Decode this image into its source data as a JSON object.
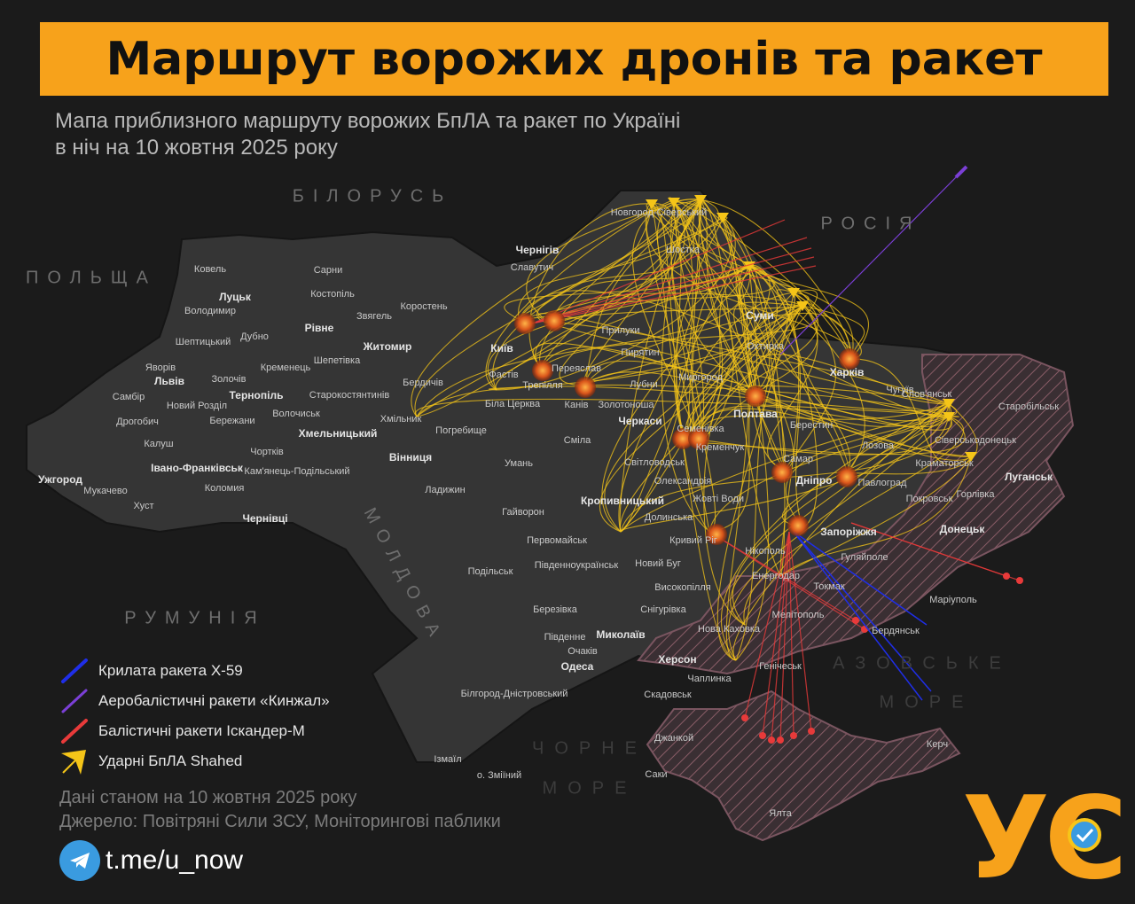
{
  "title": "Маршрут ворожих дронів та ракет",
  "subtitle": "Мапа приблизного маршруту ворожих БпЛА та ракет по Україні в ніч на 10 жовтня 2025 року",
  "countries": [
    "БІЛОРУСЬ",
    "РОСІЯ",
    "ПОЛЬЩА",
    "РУМУНІЯ",
    "МОЛДОВА"
  ],
  "seas": [
    "АЗОВСЬКЕ",
    "МОРЕ",
    "ЧОРНЕ",
    "МОРЕ"
  ],
  "cities": [
    {
      "name": "Ковель"
    },
    {
      "name": "Сарни"
    },
    {
      "name": "Луцьк",
      "center": true
    },
    {
      "name": "Костопіль"
    },
    {
      "name": "Володимир"
    },
    {
      "name": "Рівне",
      "center": true
    },
    {
      "name": "Звягель"
    },
    {
      "name": "Коростень"
    },
    {
      "name": "Дубно"
    },
    {
      "name": "Житомир",
      "center": true
    },
    {
      "name": "Шептицький"
    },
    {
      "name": "Шепетівка"
    },
    {
      "name": "Яворів"
    },
    {
      "name": "Кременець"
    },
    {
      "name": "Львів",
      "center": true
    },
    {
      "name": "Золочів"
    },
    {
      "name": "Бердичів"
    },
    {
      "name": "Тернопіль",
      "center": true
    },
    {
      "name": "Самбір"
    },
    {
      "name": "Старокостянтинів"
    },
    {
      "name": "Новий Розділ"
    },
    {
      "name": "Волочиськ"
    },
    {
      "name": "Хмільник"
    },
    {
      "name": "Дрогобич"
    },
    {
      "name": "Бережани"
    },
    {
      "name": "Хмельницький",
      "center": true
    },
    {
      "name": "Погребище"
    },
    {
      "name": "Калуш"
    },
    {
      "name": "Чортків"
    },
    {
      "name": "Вінниця",
      "center": true
    },
    {
      "name": "Івано-Франківськ",
      "center": true
    },
    {
      "name": "Кам'янець-Подільський"
    },
    {
      "name": "Ужгород",
      "center": true
    },
    {
      "name": "Мукачево"
    },
    {
      "name": "Коломия"
    },
    {
      "name": "Ладижин"
    },
    {
      "name": "Хуст"
    },
    {
      "name": "Чернівці",
      "center": true
    },
    {
      "name": "Новгород-Сіверський"
    },
    {
      "name": "Чернігів",
      "center": true
    },
    {
      "name": "Шостка"
    },
    {
      "name": "Славутич"
    },
    {
      "name": "Київ",
      "center": true
    },
    {
      "name": "Прилуки"
    },
    {
      "name": "Суми",
      "center": true
    },
    {
      "name": "Охтирка"
    },
    {
      "name": "Переяслав"
    },
    {
      "name": "Фастів"
    },
    {
      "name": "Пирятин"
    },
    {
      "name": "Трепілля"
    },
    {
      "name": "Лубни"
    },
    {
      "name": "Полтава",
      "center": true
    },
    {
      "name": "Харків",
      "center": true
    },
    {
      "name": "Чугуїв"
    },
    {
      "name": "Біла Церква"
    },
    {
      "name": "Канів"
    },
    {
      "name": "Золотоноша"
    },
    {
      "name": "Черкаси",
      "center": true
    },
    {
      "name": "Миргород"
    },
    {
      "name": "Семенівка"
    },
    {
      "name": "Лозова"
    },
    {
      "name": "Берестин"
    },
    {
      "name": "Кременчук"
    },
    {
      "name": "Сміла"
    },
    {
      "name": "Умань"
    },
    {
      "name": "Світловодськ"
    },
    {
      "name": "Краматорськ"
    },
    {
      "name": "Самар"
    },
    {
      "name": "Дніпро",
      "center": true
    },
    {
      "name": "Павлоград"
    },
    {
      "name": "Олександрія"
    },
    {
      "name": "Покровськ"
    },
    {
      "name": "Жовті Води"
    },
    {
      "name": "Кропивницький",
      "center": true
    },
    {
      "name": "Гайворон"
    },
    {
      "name": "Долинська"
    },
    {
      "name": "Запоріжжя",
      "center": true
    },
    {
      "name": "Кривий Ріг"
    },
    {
      "name": "Первомайськ"
    },
    {
      "name": "Нікополь"
    },
    {
      "name": "Гуляйполе"
    },
    {
      "name": "Подільськ"
    },
    {
      "name": "Південноукраїнськ"
    },
    {
      "name": "Новий Буг"
    },
    {
      "name": "Енергодар"
    },
    {
      "name": "Високопілля"
    },
    {
      "name": "Токмак"
    },
    {
      "name": "Березівка"
    },
    {
      "name": "Снігурівка"
    },
    {
      "name": "Мелітополь"
    },
    {
      "name": "Маріуполь"
    },
    {
      "name": "Бердянськ"
    },
    {
      "name": "Нова Каховка"
    },
    {
      "name": "Південне"
    },
    {
      "name": "Миколаїв",
      "center": true
    },
    {
      "name": "Очаків"
    },
    {
      "name": "Одеса",
      "center": true
    },
    {
      "name": "Херсон",
      "center": true
    },
    {
      "name": "Чаплинка"
    },
    {
      "name": "Скадовськ"
    },
    {
      "name": "Білгород-Дністровський"
    },
    {
      "name": "Ізмаїл"
    },
    {
      "name": "о. Зміїний"
    },
    {
      "name": "Джанкой"
    },
    {
      "name": "Керч"
    },
    {
      "name": "Саки"
    },
    {
      "name": "Ялта"
    },
    {
      "name": "Донецьк",
      "center": true
    },
    {
      "name": "Луганськ",
      "center": true
    },
    {
      "name": "Горлівка"
    },
    {
      "name": "Сіверськодонецьк"
    },
    {
      "name": "Старобільськ"
    },
    {
      "name": "Генічеськ"
    },
    {
      "name": "Слов'янськ"
    }
  ],
  "legend": [
    {
      "label": "Крилата ракета Х-59",
      "color": "#1f2ee8",
      "icon": "missile-icon"
    },
    {
      "label": "Аеробалістичні ракети «Кинжал»",
      "color": "#7b3fd6",
      "icon": "missile-icon"
    },
    {
      "label": "Балістичні ракети Іскандер-М",
      "color": "#e83a3a",
      "icon": "missile-icon"
    },
    {
      "label": "Ударні БпЛА Shahed",
      "color": "#f5c518",
      "icon": "drone-icon"
    }
  ],
  "footer": {
    "date": "Дані станом на 10 жовтня 2025 року",
    "source": "Джерело: Повітряні Сили ЗСУ, Моніторингові паблики"
  },
  "telegram": {
    "link": "t.me/u_now",
    "icon": "telegram-icon"
  },
  "logo": "УС",
  "colors": {
    "accent": "#f7a21b",
    "drone": "#f5c518",
    "iskander": "#e83a3a",
    "kh59": "#1f2ee8",
    "kinzhal": "#7b3fd6",
    "occupied": "#5a3a44"
  }
}
